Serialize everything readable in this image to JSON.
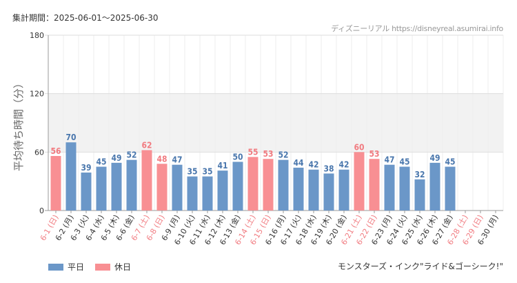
{
  "period_text": "集計期間：2025-06-01～2025-06-30",
  "site_text": "ディズニーリアル https://disneyreal.asumirai.info",
  "attraction_name": "モンスターズ・インク\"ライド&ゴーシーク!\"",
  "colors": {
    "weekday": "#6b97c8",
    "holiday": "#f88f93",
    "weekday_label": "#4a77ad",
    "holiday_label": "#f17b80",
    "band": "#f2f2f2",
    "grid": "#dddddd"
  },
  "legend": [
    {
      "label": "平日",
      "color": "#6b97c8"
    },
    {
      "label": "休日",
      "color": "#f88f93"
    }
  ],
  "chart_data": {
    "type": "bar",
    "ylabel": "平均待ち時間（分）",
    "xlabel": "",
    "ylim": [
      0,
      180
    ],
    "yticks": [
      0,
      60,
      120,
      180
    ],
    "shaded_band": [
      60,
      120
    ],
    "grid": true,
    "categories": [
      "6-1 (日)",
      "6-2 (月)",
      "6-3 (火)",
      "6-4 (水)",
      "6-5 (木)",
      "6-6 (金)",
      "6-7 (土)",
      "6-8 (日)",
      "6-9 (月)",
      "6-10 (火)",
      "6-11 (水)",
      "6-12 (木)",
      "6-13 (金)",
      "6-14 (土)",
      "6-15 (日)",
      "6-16 (月)",
      "6-17 (火)",
      "6-18 (水)",
      "6-19 (木)",
      "6-20 (金)",
      "6-21 (土)",
      "6-22 (日)",
      "6-23 (月)",
      "6-24 (火)",
      "6-25 (水)",
      "6-26 (木)",
      "6-27 (金)",
      "6-28 (土)",
      "6-29 (日)",
      "6-30 (月)"
    ],
    "values": [
      56,
      70,
      39,
      45,
      49,
      52,
      62,
      48,
      47,
      35,
      35,
      41,
      50,
      55,
      53,
      52,
      44,
      42,
      38,
      42,
      60,
      53,
      47,
      45,
      32,
      49,
      45,
      null,
      null,
      null
    ],
    "holiday": [
      true,
      false,
      false,
      false,
      false,
      false,
      true,
      true,
      false,
      false,
      false,
      false,
      false,
      true,
      true,
      false,
      false,
      false,
      false,
      false,
      true,
      true,
      false,
      false,
      false,
      false,
      false,
      true,
      true,
      false
    ],
    "legend_position": "bottom-left"
  }
}
